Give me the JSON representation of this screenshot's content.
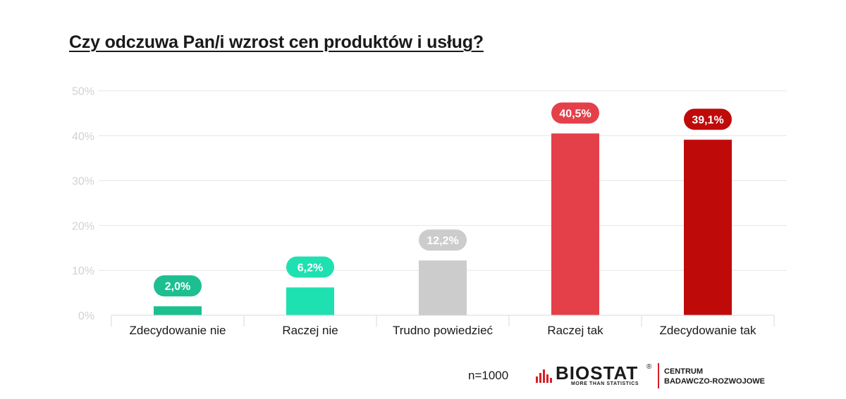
{
  "chart_data": {
    "type": "bar",
    "title": "Czy odczuwa Pan/i wzrost cen produktów i usług?",
    "categories": [
      "Zdecydowanie nie",
      "Raczej nie",
      "Trudno powiedzieć",
      "Raczej tak",
      "Zdecydowanie tak"
    ],
    "values": [
      2.0,
      6.2,
      12.2,
      40.5,
      39.1
    ],
    "value_labels": [
      "2,0%",
      "6,2%",
      "12,2%",
      "40,5%",
      "39,1%"
    ],
    "colors": [
      "#1dbf90",
      "#1fe0b0",
      "#cccccc",
      "#e4404a",
      "#bf0a0a"
    ],
    "ylim": [
      0,
      50
    ],
    "yticks": [
      "0%",
      "10%",
      "20%",
      "30%",
      "40%",
      "50%"
    ],
    "grid": true,
    "xlabel": "",
    "ylabel": ""
  },
  "footer": {
    "sample": "n=1000",
    "logo": {
      "brand": "BIOSTAT",
      "registered": "®",
      "tagline": "MORE THAN STATISTICS",
      "org_line1": "CENTRUM",
      "org_line2": "BADAWCZO-ROZWOJOWE",
      "accent": "#d61f26"
    }
  }
}
